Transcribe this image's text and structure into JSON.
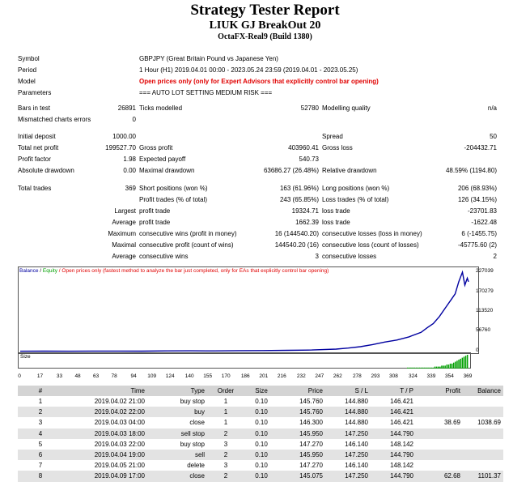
{
  "header": {
    "title": "Strategy Tester Report",
    "ea_name": "LIUK GJ BreakOut 20",
    "server": "OctaFX-Real9 (Build 1380)"
  },
  "summary": {
    "symbol_label": "Symbol",
    "symbol_value": "GBPJPY (Great Britain Pound vs Japanese Yen)",
    "period_label": "Period",
    "period_value": "1 Hour (H1) 2019.04.01 00:00 - 2023.05.24 23:59 (2019.04.01 - 2023.05.25)",
    "model_label": "Model",
    "model_value": "Open prices only (only for Expert Advisors that explicitly control bar opening)",
    "parameters_label": "Parameters",
    "parameters_value": "=== AUTO LOT SETTING MEDIUM RISK ===",
    "bars_label": "Bars in test",
    "bars_value": "26891",
    "ticks_label": "Ticks modelled",
    "ticks_value": "52780",
    "quality_label": "Modelling quality",
    "quality_value": "n/a",
    "mismatch_label": "Mismatched charts errors",
    "mismatch_value": "0",
    "deposit_label": "Initial deposit",
    "deposit_value": "1000.00",
    "spread_label": "Spread",
    "spread_value": "50",
    "net_label": "Total net profit",
    "net_value": "199527.70",
    "gross_profit_label": "Gross profit",
    "gross_profit_value": "403960.41",
    "gross_loss_label": "Gross loss",
    "gross_loss_value": "-204432.71",
    "pf_label": "Profit factor",
    "pf_value": "1.98",
    "payoff_label": "Expected payoff",
    "payoff_value": "540.73",
    "abs_dd_label": "Absolute drawdown",
    "abs_dd_value": "0.00",
    "max_dd_label": "Maximal drawdown",
    "max_dd_value": "63686.27 (26.48%)",
    "rel_dd_label": "Relative drawdown",
    "rel_dd_value": "48.59% (1194.80)",
    "trades_label": "Total trades",
    "trades_value": "369",
    "short_label": "Short positions (won %)",
    "short_value": "163 (61.96%)",
    "long_label": "Long positions (won %)",
    "long_value": "206 (68.93%)",
    "profit_trades_label": "Profit trades (% of total)",
    "profit_trades_value": "243 (65.85%)",
    "loss_trades_label": "Loss trades (% of total)",
    "loss_trades_value": "126 (34.15%)",
    "largest_label": "Largest",
    "largest_profit_label": "profit trade",
    "largest_profit_value": "19324.71",
    "largest_loss_label": "loss trade",
    "largest_loss_value": "-23701.83",
    "average_label": "Average",
    "avg_profit_label": "profit trade",
    "avg_profit_value": "1662.39",
    "avg_loss_label": "loss trade",
    "avg_loss_value": "-1622.48",
    "maximum_label": "Maximum",
    "max_cons_wins_label": "consecutive wins (profit in money)",
    "max_cons_wins_value": "16 (144540.20)",
    "max_cons_losses_label": "consecutive losses (loss in money)",
    "max_cons_losses_value": "6 (-1455.75)",
    "maximal_label": "Maximal",
    "maximal_cons_profit_label": "consecutive profit (count of wins)",
    "maximal_cons_profit_value": "144540.20 (16)",
    "maximal_cons_loss_label": "consecutive loss (count of losses)",
    "maximal_cons_loss_value": "-45775.60 (2)",
    "avg_cons_label": "Average",
    "avg_cons_wins_label": "consecutive wins",
    "avg_cons_wins_value": "3",
    "avg_cons_losses_label": "consecutive losses",
    "avg_cons_losses_value": "2"
  },
  "chart_legend": {
    "balance": "Balance",
    "sep": " / ",
    "equity": "Equity",
    "note": " / Open prices only (fastest method to analyze the bar just completed, only for EAs that explicitly control bar opening)"
  },
  "size_label": "Size",
  "colors": {
    "balance": "#0000a0",
    "equity": "#00a000",
    "size_bars": "#00a000",
    "model_text": "#e00000"
  },
  "chart_data": {
    "type": "line",
    "series": [
      {
        "name": "Balance",
        "x": [
          0,
          20,
          40,
          60,
          80,
          100,
          120,
          140,
          160,
          180,
          200,
          220,
          240,
          260,
          270,
          280,
          290,
          300,
          310,
          320,
          330,
          335,
          340,
          345,
          350,
          355,
          358,
          361,
          364,
          366,
          368,
          369
        ],
        "y": [
          1000,
          1100,
          900,
          1300,
          1500,
          1200,
          1800,
          2000,
          1900,
          2500,
          2800,
          3500,
          4500,
          7000,
          10000,
          14000,
          20000,
          27000,
          33000,
          42000,
          55000,
          68000,
          80000,
          100000,
          125000,
          150000,
          165000,
          200000,
          227039,
          190000,
          210000,
          199527.7
        ]
      }
    ],
    "yticks": [
      "227039",
      "170279",
      "113520",
      "56760",
      "0"
    ],
    "ylim": [
      0,
      227039
    ],
    "xticks": [
      "0",
      "17",
      "33",
      "48",
      "63",
      "78",
      "94",
      "109",
      "124",
      "140",
      "155",
      "170",
      "186",
      "201",
      "216",
      "232",
      "247",
      "262",
      "278",
      "293",
      "308",
      "324",
      "339",
      "354",
      "369"
    ],
    "xlim": [
      0,
      369
    ],
    "size_panel_values": [
      1,
      1,
      1,
      1,
      1,
      1,
      1,
      1,
      1,
      1,
      1,
      1,
      1,
      1,
      1,
      1,
      2,
      2,
      2,
      2,
      3,
      3,
      3,
      4,
      4,
      5,
      5,
      6,
      7,
      8,
      9,
      10,
      11,
      12,
      13,
      14
    ]
  },
  "trades": {
    "headers": [
      "#",
      "Time",
      "Type",
      "Order",
      "Size",
      "Price",
      "S / L",
      "T / P",
      "Profit",
      "Balance"
    ],
    "rows": [
      [
        "1",
        "2019.04.02 21:00",
        "buy stop",
        "1",
        "0.10",
        "145.760",
        "144.880",
        "146.421",
        "",
        ""
      ],
      [
        "2",
        "2019.04.02 22:00",
        "buy",
        "1",
        "0.10",
        "145.760",
        "144.880",
        "146.421",
        "",
        ""
      ],
      [
        "3",
        "2019.04.03 04:00",
        "close",
        "1",
        "0.10",
        "146.300",
        "144.880",
        "146.421",
        "38.69",
        "1038.69"
      ],
      [
        "4",
        "2019.04.03 18:00",
        "sell stop",
        "2",
        "0.10",
        "145.950",
        "147.250",
        "144.790",
        "",
        ""
      ],
      [
        "5",
        "2019.04.03 22:00",
        "buy stop",
        "3",
        "0.10",
        "147.270",
        "146.140",
        "148.142",
        "",
        ""
      ],
      [
        "6",
        "2019.04.04 19:00",
        "sell",
        "2",
        "0.10",
        "145.950",
        "147.250",
        "144.790",
        "",
        ""
      ],
      [
        "7",
        "2019.04.05 21:00",
        "delete",
        "3",
        "0.10",
        "147.270",
        "146.140",
        "148.142",
        "",
        ""
      ],
      [
        "8",
        "2019.04.09 17:00",
        "close",
        "2",
        "0.10",
        "145.075",
        "147.250",
        "144.790",
        "62.68",
        "1101.37"
      ]
    ]
  }
}
